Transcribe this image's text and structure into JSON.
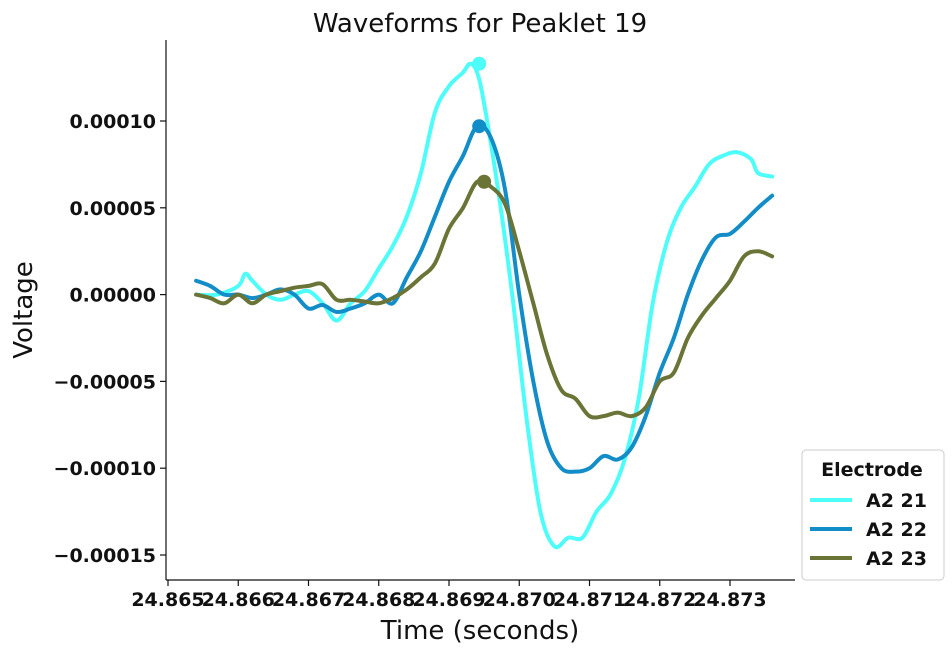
{
  "chart_data": {
    "type": "line",
    "title": "Waveforms for Peaklet 19",
    "xlabel": "Time (seconds)",
    "ylabel": "Voltage",
    "xlim": [
      24.865,
      24.8739
    ],
    "ylim": [
      -0.000163,
      0.000147
    ],
    "xticks": [
      24.865,
      24.866,
      24.867,
      24.868,
      24.869,
      24.87,
      24.871,
      24.872,
      24.873
    ],
    "xtick_labels": [
      "24.865",
      "24.866",
      "24.867",
      "24.868",
      "24.869",
      "24.870",
      "24.871",
      "24.872",
      "24.873"
    ],
    "yticks": [
      0.0001,
      5e-05,
      0,
      -5e-05,
      -0.0001,
      -0.00015
    ],
    "ytick_labels": [
      "0.00010",
      "0.00005",
      "0.00000",
      "−0.00005",
      "−0.00010",
      "−0.00015"
    ],
    "grid": false,
    "legend": {
      "title": "Electrode",
      "placement": "lower-right-outside"
    },
    "series": [
      {
        "name": "A2 21",
        "color": "#4dfdf9",
        "x": [
          24.8654,
          24.8657,
          24.866,
          24.8661,
          24.8662,
          24.8664,
          24.8666,
          24.8668,
          24.867,
          24.8672,
          24.8674,
          24.8676,
          24.8678,
          24.868,
          24.8682,
          24.8684,
          24.8686,
          24.8688,
          24.869,
          24.8692,
          24.8693,
          24.8694,
          24.8695,
          24.8697,
          24.8699,
          24.8701,
          24.8703,
          24.8705,
          24.8707,
          24.8709,
          24.8711,
          24.8713,
          24.8715,
          24.8717,
          24.8719,
          24.8721,
          24.8723,
          24.8725,
          24.8727,
          24.8729,
          24.8731,
          24.8733,
          24.8734,
          24.8736
        ],
        "values": [
          0.0,
          0.0,
          5e-06,
          1.2e-05,
          8e-06,
          0.0,
          -3e-06,
          0.0,
          2e-06,
          -5e-06,
          -1.5e-05,
          -5e-06,
          2e-06,
          1.5e-05,
          2.8e-05,
          4.5e-05,
          7e-05,
          0.000105,
          0.00012,
          0.000128,
          0.000133,
          0.000128,
          0.00011,
          6e-05,
          0.0,
          -7e-05,
          -0.000125,
          -0.000145,
          -0.00014,
          -0.00014,
          -0.000125,
          -0.000115,
          -9.5e-05,
          -6e-05,
          -5e-06,
          3e-05,
          5e-05,
          6.2e-05,
          7.5e-05,
          8e-05,
          8.2e-05,
          7.8e-05,
          7e-05,
          6.8e-05
        ]
      },
      {
        "name": "A2 22",
        "color": "#138dc8",
        "x": [
          24.8654,
          24.8656,
          24.8658,
          24.866,
          24.8662,
          24.8664,
          24.8666,
          24.8668,
          24.867,
          24.8672,
          24.8674,
          24.8676,
          24.8678,
          24.868,
          24.8682,
          24.8684,
          24.8686,
          24.8688,
          24.869,
          24.8692,
          24.8694,
          24.8696,
          24.8698,
          24.87,
          24.8702,
          24.8704,
          24.8706,
          24.8708,
          24.871,
          24.8712,
          24.8714,
          24.8716,
          24.8718,
          24.872,
          24.8722,
          24.8724,
          24.8726,
          24.8728,
          24.873,
          24.8732,
          24.8734,
          24.8736
        ],
        "values": [
          8e-06,
          5e-06,
          0.0,
          0.0,
          -2e-06,
          0.0,
          3e-06,
          0.0,
          -8e-06,
          -6e-06,
          -1e-05,
          -8e-06,
          -5e-06,
          0.0,
          -5e-06,
          1e-05,
          2.5e-05,
          4.5e-05,
          6.5e-05,
          8e-05,
          9.7e-05,
          9e-05,
          6e-05,
          0.0,
          -5e-05,
          -8.5e-05,
          -0.0001,
          -0.000102,
          -0.0001,
          -9.3e-05,
          -9.5e-05,
          -8.8e-05,
          -7e-05,
          -4.5e-05,
          -2.5e-05,
          0.0,
          2e-05,
          3.3e-05,
          3.5e-05,
          4.2e-05,
          5e-05,
          5.7e-05
        ]
      },
      {
        "name": "A2 23",
        "color": "#6b7437",
        "x": [
          24.8654,
          24.8656,
          24.8658,
          24.866,
          24.8662,
          24.8664,
          24.8666,
          24.8668,
          24.867,
          24.8672,
          24.8674,
          24.8676,
          24.8678,
          24.868,
          24.8682,
          24.8684,
          24.8686,
          24.8688,
          24.869,
          24.8692,
          24.8694,
          24.8696,
          24.8698,
          24.87,
          24.8702,
          24.8704,
          24.8706,
          24.8708,
          24.871,
          24.8712,
          24.8714,
          24.8716,
          24.8718,
          24.872,
          24.8722,
          24.8724,
          24.8726,
          24.8728,
          24.873,
          24.8732,
          24.8734,
          24.8736
        ],
        "values": [
          0.0,
          -2e-06,
          -5e-06,
          0.0,
          -5e-06,
          0.0,
          2e-06,
          4e-06,
          5e-06,
          6e-06,
          -3e-06,
          -3e-06,
          -4e-06,
          -5e-06,
          -2e-06,
          3e-06,
          1e-05,
          1.8e-05,
          3.8e-05,
          5e-05,
          6.5e-05,
          6.2e-05,
          5.2e-05,
          2.5e-05,
          -5e-06,
          -3.5e-05,
          -5.5e-05,
          -6e-05,
          -7e-05,
          -7e-05,
          -6.8e-05,
          -7e-05,
          -6.5e-05,
          -5e-05,
          -4.5e-05,
          -2.5e-05,
          -1.2e-05,
          -2e-06,
          8e-06,
          2.2e-05,
          2.5e-05,
          2.2e-05
        ]
      }
    ],
    "peak_markers": [
      {
        "series": "A2 21",
        "x": 24.86943,
        "y": 0.000133
      },
      {
        "series": "A2 22",
        "x": 24.86943,
        "y": 9.7e-05
      },
      {
        "series": "A2 23",
        "x": 24.8695,
        "y": 6.5e-05
      }
    ]
  }
}
